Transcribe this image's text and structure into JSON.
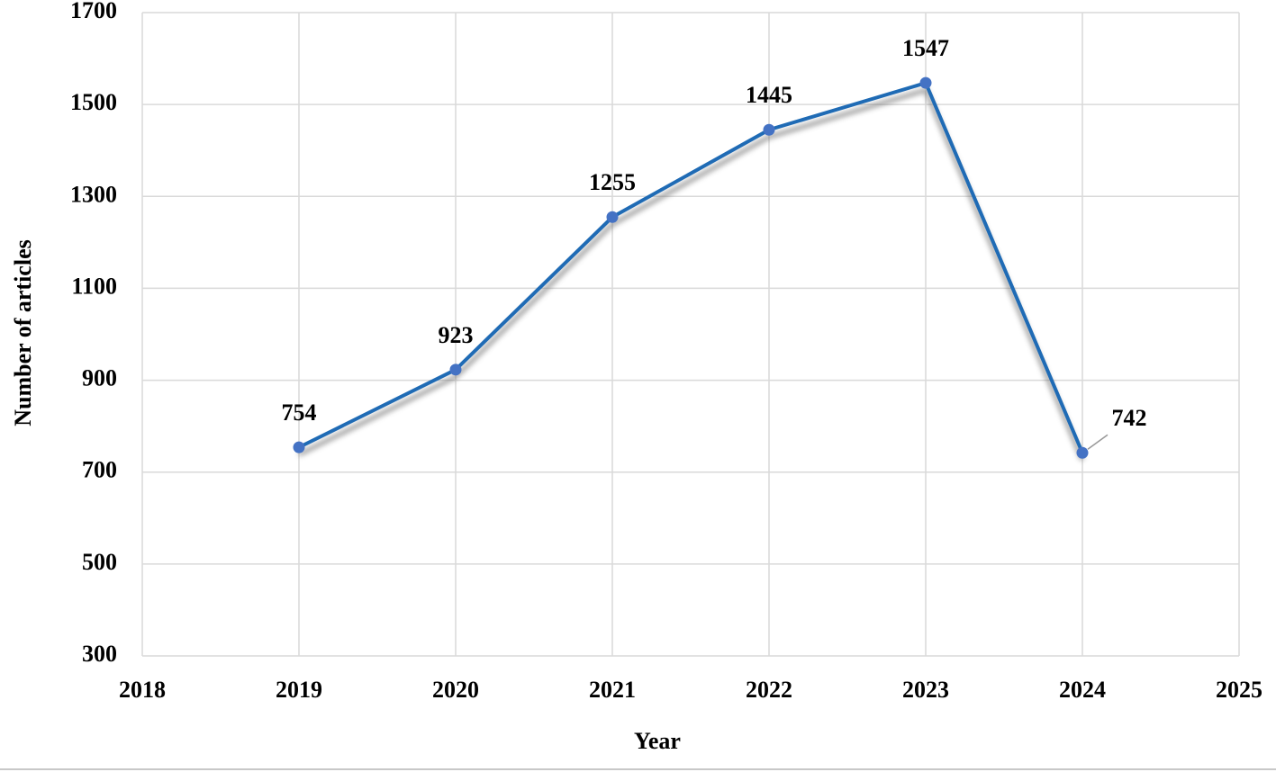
{
  "chart_data": {
    "type": "line",
    "x_label": "Year",
    "y_label": "Number of articles",
    "series": [
      {
        "name": "Number of articles",
        "color": "#1f6bb5",
        "marker_color": "#4472c4",
        "x": [
          2019,
          2020,
          2021,
          2022,
          2023,
          2024
        ],
        "values": [
          754,
          923,
          1255,
          1445,
          1547,
          742
        ]
      }
    ],
    "xlim": [
      2018,
      2025
    ],
    "xticks": [
      2018,
      2019,
      2020,
      2021,
      2022,
      2023,
      2024,
      2025
    ],
    "ylim": [
      300,
      1700
    ],
    "yticks": [
      300,
      500,
      700,
      900,
      1100,
      1300,
      1500,
      1700
    ],
    "grid": true
  }
}
